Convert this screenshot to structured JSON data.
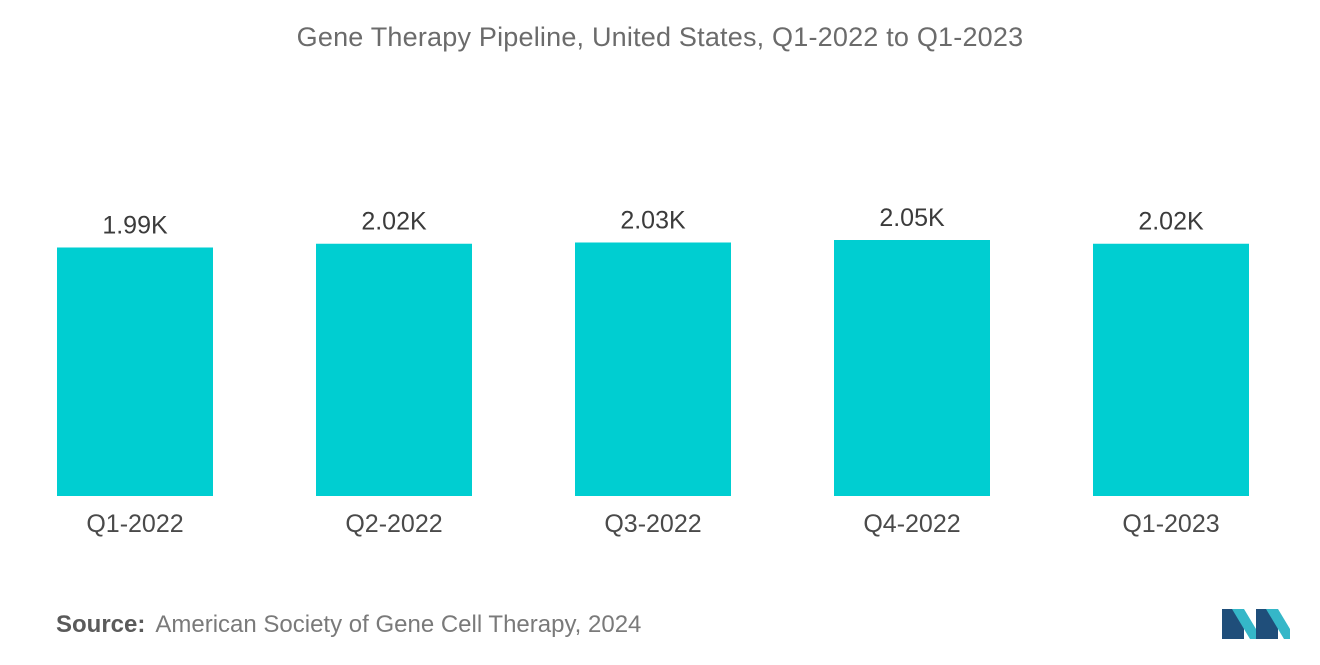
{
  "title": "Gene Therapy Pipeline, United States, Q1-2022 to Q1-2023",
  "source": {
    "label": "Source:",
    "text": "American Society of Gene Cell Therapy, 2024"
  },
  "colors": {
    "bar": "#00CED1",
    "logo_dark": "#1f4e7a",
    "logo_light": "#35b7c8"
  },
  "chart_data": {
    "type": "bar",
    "title": "Gene Therapy Pipeline, United States, Q1-2022 to Q1-2023",
    "xlabel": "",
    "ylabel": "",
    "categories": [
      "Q1-2022",
      "Q2-2022",
      "Q3-2022",
      "Q4-2022",
      "Q1-2023"
    ],
    "values": [
      1990,
      2020,
      2030,
      2050,
      2020
    ],
    "data_labels": [
      "1.99K",
      "2.02K",
      "2.03K",
      "2.05K",
      "2.02K"
    ],
    "ylim": [
      0,
      2050
    ],
    "grid": false,
    "legend": "none"
  }
}
